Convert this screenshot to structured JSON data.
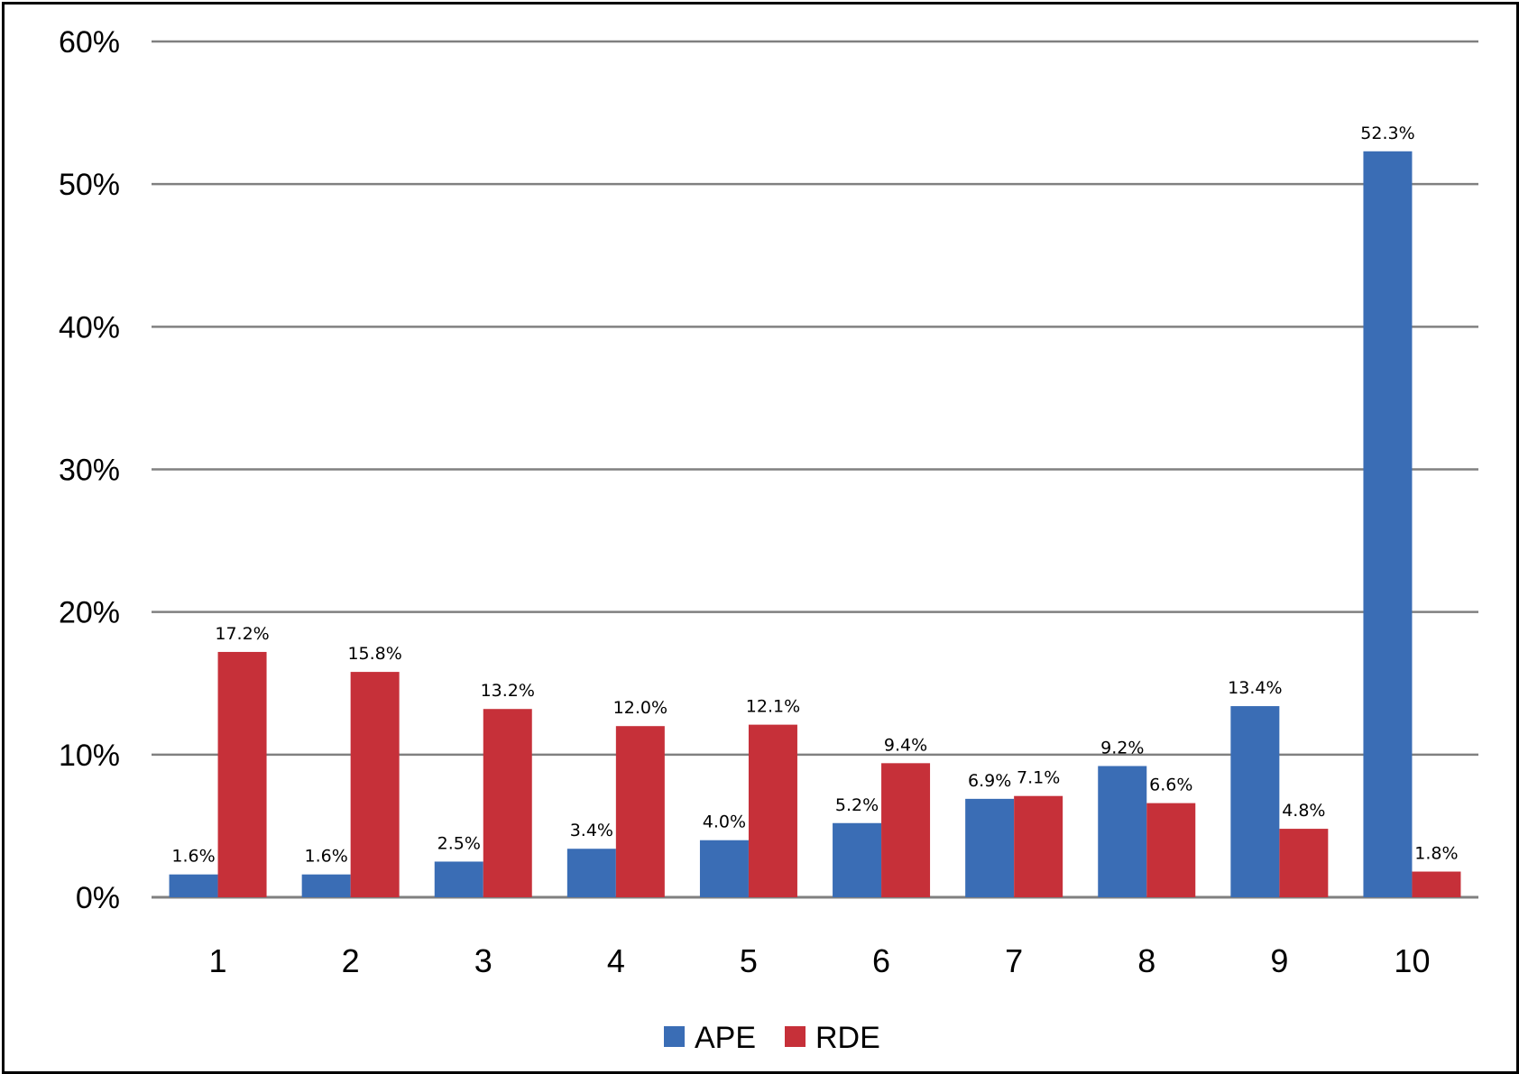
{
  "chart_data": {
    "type": "bar",
    "title": "",
    "xlabel": "",
    "ylabel": "",
    "categories": [
      "1",
      "2",
      "3",
      "4",
      "5",
      "6",
      "7",
      "8",
      "9",
      "10"
    ],
    "series": [
      {
        "name": "APE",
        "color": "#3a6db5",
        "values": [
          1.6,
          1.6,
          2.5,
          3.4,
          4.0,
          5.2,
          6.9,
          9.2,
          13.4,
          52.3
        ],
        "labels": [
          "1.6%",
          "1.6%",
          "2.5%",
          "3.4%",
          "4.0%",
          "5.2%",
          "6.9%",
          "9.2%",
          "13.4%",
          "52.3%"
        ]
      },
      {
        "name": "RDE",
        "color": "#c63039",
        "values": [
          17.2,
          15.8,
          13.2,
          12.0,
          12.1,
          9.4,
          7.1,
          6.6,
          4.8,
          1.8
        ],
        "labels": [
          "17.2%",
          "15.8%",
          "13.2%",
          "12.0%",
          "12.1%",
          "9.4%",
          "7.1%",
          "6.6%",
          "4.8%",
          "1.8%"
        ]
      }
    ],
    "ylim": [
      0,
      60
    ],
    "yticks": [
      0,
      10,
      20,
      30,
      40,
      50,
      60
    ],
    "ytick_labels": [
      "0%",
      "10%",
      "20%",
      "30%",
      "40%",
      "50%",
      "60%"
    ],
    "grid": true,
    "legend": "bottom-center"
  }
}
